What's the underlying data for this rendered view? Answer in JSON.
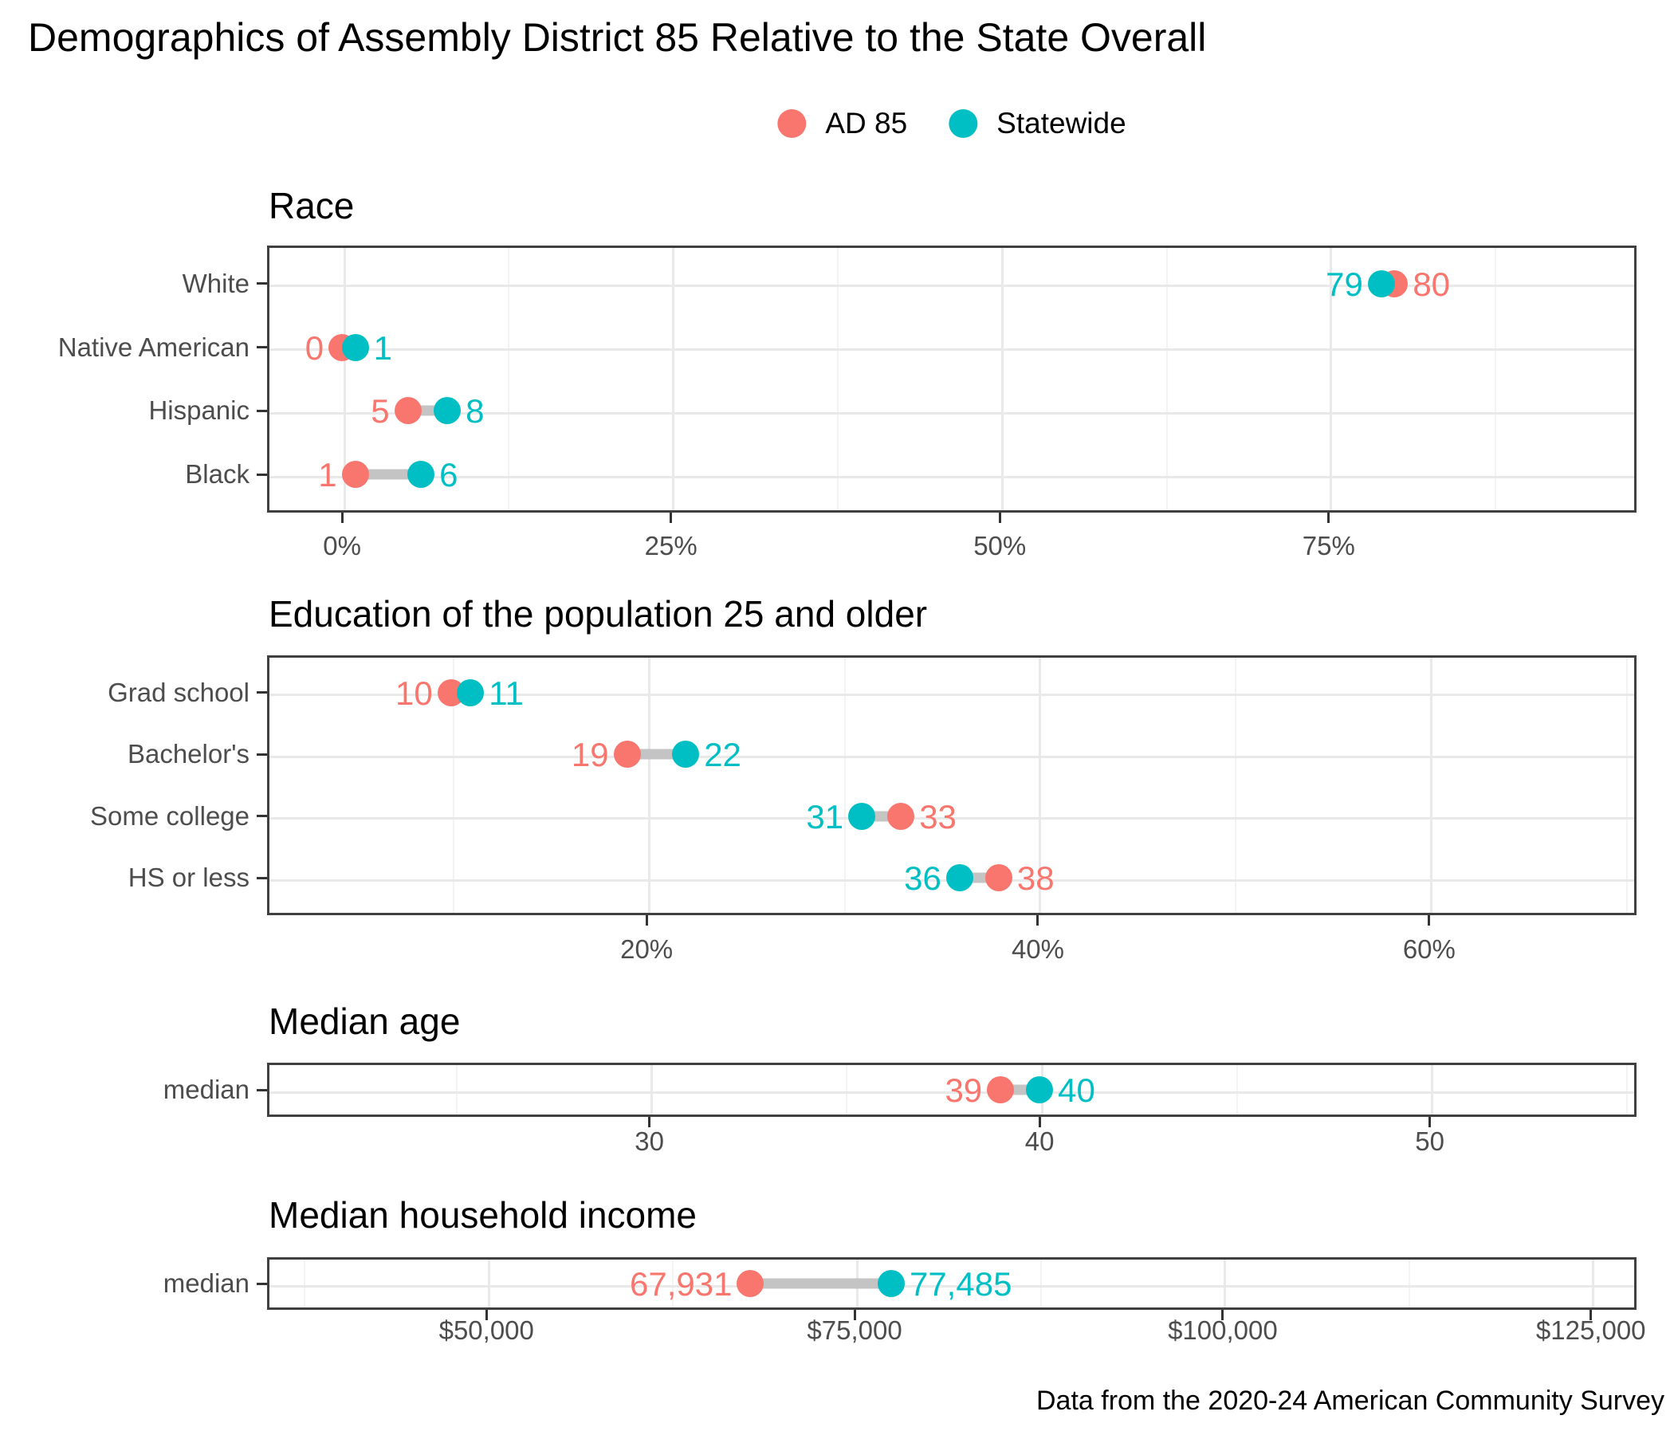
{
  "title": "Demographics of Assembly District 85 Relative to the State Overall",
  "caption": "Data from the 2020-24 American Community Survey",
  "legend": {
    "items": [
      {
        "key": "ad85",
        "label": "AD 85",
        "color": "#F8766D"
      },
      {
        "key": "statewide",
        "label": "Statewide",
        "color": "#00BFC4"
      }
    ]
  },
  "colors": {
    "ad85": "#F8766D",
    "statewide": "#00BFC4",
    "connector": "#c4c4c4",
    "grid_major": "#e9e9e9",
    "grid_minor": "#f3f3f3",
    "axis_text": "#4d4d4d",
    "panel_border": "#404040"
  },
  "chart_data": [
    {
      "id": "race",
      "type": "dumbbell",
      "title": "Race",
      "series": [
        "AD 85",
        "Statewide"
      ],
      "axis": {
        "min": -5.7,
        "max": 98.4,
        "ticks": [
          {
            "v": 0,
            "label": "0%"
          },
          {
            "v": 25,
            "label": "25%"
          },
          {
            "v": 50,
            "label": "50%"
          },
          {
            "v": 75,
            "label": "75%"
          }
        ]
      },
      "rows": [
        {
          "category": "White",
          "ad85": 80,
          "statewide": 79,
          "ad85_label": "80",
          "statewide_label": "79"
        },
        {
          "category": "Native American",
          "ad85": 0,
          "statewide": 1,
          "ad85_label": "0",
          "statewide_label": "1"
        },
        {
          "category": "Hispanic",
          "ad85": 5,
          "statewide": 8,
          "ad85_label": "5",
          "statewide_label": "8"
        },
        {
          "category": "Black",
          "ad85": 1,
          "statewide": 6,
          "ad85_label": "1",
          "statewide_label": "6"
        }
      ]
    },
    {
      "id": "education",
      "type": "dumbbell",
      "title": "Education of the population 25 and older",
      "series": [
        "AD 85",
        "Statewide"
      ],
      "axis": {
        "min": 0.6,
        "max": 70.6,
        "ticks": [
          {
            "v": 20,
            "label": "20%"
          },
          {
            "v": 40,
            "label": "40%"
          },
          {
            "v": 60,
            "label": "60%"
          }
        ]
      },
      "rows": [
        {
          "category": "Grad school",
          "ad85": 10,
          "statewide": 11,
          "ad85_label": "10",
          "statewide_label": "11"
        },
        {
          "category": "Bachelor's",
          "ad85": 19,
          "statewide": 22,
          "ad85_label": "19",
          "statewide_label": "22"
        },
        {
          "category": "Some college",
          "ad85": 33,
          "statewide": 31,
          "ad85_label": "33",
          "statewide_label": "31"
        },
        {
          "category": "HS or less",
          "ad85": 38,
          "statewide": 36,
          "ad85_label": "38",
          "statewide_label": "36"
        }
      ]
    },
    {
      "id": "median-age",
      "type": "dumbbell",
      "title": "Median age",
      "series": [
        "AD 85",
        "Statewide"
      ],
      "axis": {
        "min": 20.2,
        "max": 55.3,
        "ticks": [
          {
            "v": 30,
            "label": "30"
          },
          {
            "v": 40,
            "label": "40"
          },
          {
            "v": 50,
            "label": "50"
          }
        ]
      },
      "rows": [
        {
          "category": "median",
          "ad85": 39,
          "statewide": 40,
          "ad85_label": "39",
          "statewide_label": "40"
        }
      ]
    },
    {
      "id": "median-income",
      "type": "dumbbell",
      "title": "Median household income",
      "series": [
        "AD 85",
        "Statewide"
      ],
      "axis": {
        "min": 35100,
        "max": 128100,
        "ticks": [
          {
            "v": 50000,
            "label": "$50,000"
          },
          {
            "v": 75000,
            "label": "$75,000"
          },
          {
            "v": 100000,
            "label": "$100,000"
          },
          {
            "v": 125000,
            "label": "$125,000"
          }
        ]
      },
      "rows": [
        {
          "category": "median",
          "ad85": 67931,
          "statewide": 77485,
          "ad85_label": "67,931",
          "statewide_label": "77,485"
        }
      ]
    }
  ]
}
